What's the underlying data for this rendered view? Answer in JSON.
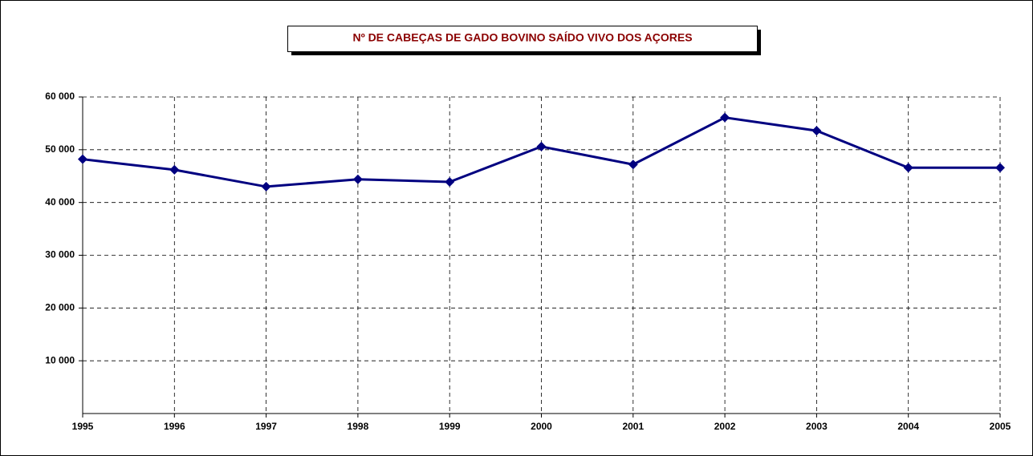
{
  "chart_data": {
    "type": "line",
    "title": "Nº DE CABEÇAS DE GADO BOVINO SAÍDO VIVO DOS AÇORES",
    "categories": [
      "1995",
      "1996",
      "1997",
      "1998",
      "1999",
      "2000",
      "2001",
      "2002",
      "2003",
      "2004",
      "2005"
    ],
    "series": [
      {
        "color": "#000080",
        "values": [
          48200,
          46200,
          43000,
          44400,
          43900,
          50600,
          47200,
          56100,
          53600,
          46600,
          46600
        ]
      }
    ],
    "ylim": [
      0,
      60000
    ],
    "yticks": [
      {
        "value": 10000,
        "label": "10 000"
      },
      {
        "value": 20000,
        "label": "20 000"
      },
      {
        "value": 30000,
        "label": "30 000"
      },
      {
        "value": 40000,
        "label": "40 000"
      },
      {
        "value": 50000,
        "label": "50 000"
      },
      {
        "value": 60000,
        "label": "60 000"
      }
    ],
    "grid": true
  }
}
